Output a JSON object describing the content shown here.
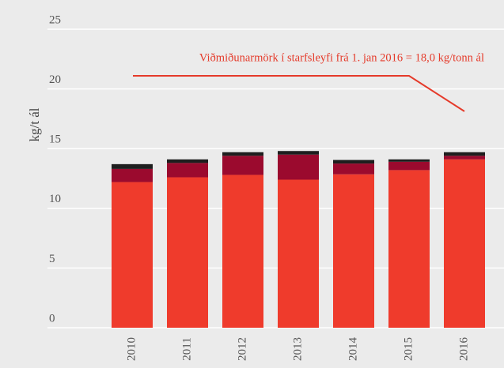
{
  "chart_data": {
    "type": "stacked_bar",
    "ylabel": "kg/t ál",
    "annotation": "Viðmiðunarmörk í starfsleyfi frá 1. jan 2016  = 18,0 kg/tonn ál",
    "categories": [
      "2010",
      "2011",
      "2012",
      "2013",
      "2014",
      "2015",
      "2016"
    ],
    "series": [
      {
        "color": "#ef3b2c",
        "values": [
          12.2,
          12.6,
          12.8,
          12.4,
          12.85,
          13.2,
          14.1
        ]
      },
      {
        "color": "#9b0a2e",
        "values": [
          1.1,
          1.2,
          1.6,
          2.1,
          0.9,
          0.7,
          0.3
        ]
      },
      {
        "color": "#1e1e1e",
        "values": [
          0.4,
          0.3,
          0.3,
          0.3,
          0.3,
          0.2,
          0.3
        ]
      }
    ],
    "ylim": [
      0,
      25
    ],
    "yticks": [
      0,
      5,
      10,
      15,
      20,
      25
    ],
    "grid": true
  }
}
